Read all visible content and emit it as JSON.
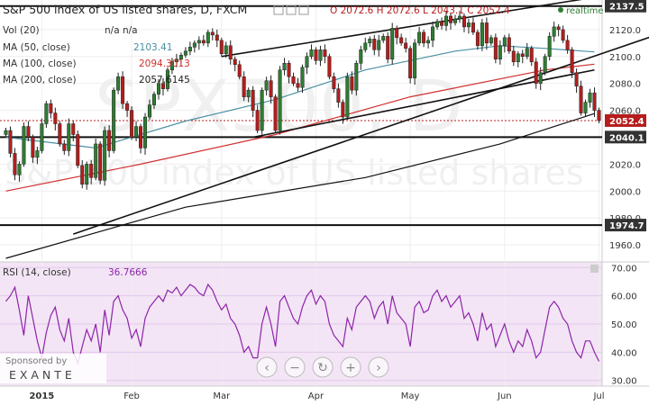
{
  "header": {
    "title": "S&P 500 index of US listed shares, D, FXCM",
    "ohlc": "O 2072.6 H 2072.6 L 2043.1 C 2052.4",
    "realtime_label": "realtime"
  },
  "indicators": [
    {
      "label": "Vol (20)",
      "values": "n/a  n/a"
    },
    {
      "label": "MA (50, close)",
      "value": "2103.41"
    },
    {
      "label": "MA (100, close)",
      "value": "2094.3013"
    },
    {
      "label": "MA (200, close)",
      "value": "2057.6145"
    }
  ],
  "watermark": {
    "symbol": "SPX500, D",
    "desc": "S&P 500 index of US listed shares"
  },
  "rsi_panel": {
    "label": "RSI (14, close)",
    "value": "36.7666"
  },
  "sponsor": {
    "label": "Sponsored by",
    "brand": "E X A N T E"
  },
  "controls": [
    "back-icon",
    "zoom-out-icon",
    "reset-icon",
    "zoom-in-icon",
    "forward-icon"
  ],
  "colors": {
    "up": "#2e7d32",
    "down": "#b71c1c",
    "ma50": "#4a90a4",
    "ma100": "#d32f2f",
    "ma200": "#111111",
    "rsi": "#8e24aa",
    "rsi_bg": "#f3e5f5",
    "price_axis_bg": "#333333"
  },
  "chart_data": {
    "type": "line",
    "title": "S&P 500 index of US listed shares, D, FXCM",
    "price_axis": {
      "ticks": [
        2120.0,
        2100.0,
        2080.0,
        2060.0,
        2040.0,
        2020.0,
        2000.0,
        1980.0,
        1960.0
      ],
      "ylim": [
        1948,
        2142
      ],
      "badges": [
        {
          "label": "2137.5",
          "value": 2137.5
        },
        {
          "label": "2052.4",
          "value": 2052.4
        },
        {
          "label": "2040.1",
          "value": 2040.1
        },
        {
          "label": "1974.7",
          "value": 1974.7
        }
      ],
      "horizontal_levels": [
        2137.5,
        2040.1,
        1974.7
      ]
    },
    "time_axis": {
      "labels": [
        "2015",
        "Feb",
        "Mar",
        "Apr",
        "May",
        "Jun",
        "Jul"
      ],
      "label_bar_index": [
        8,
        28,
        48,
        69,
        90,
        111,
        132
      ]
    },
    "candles_close": [
      2045,
      2028,
      2012,
      2020,
      2048,
      2040,
      2025,
      2030,
      2050,
      2065,
      2058,
      2050,
      2035,
      2030,
      2050,
      2042,
      2019,
      2005,
      2020,
      2010,
      2035,
      2008,
      2045,
      2030,
      2075,
      2085,
      2065,
      2060,
      2040,
      2048,
      2032,
      2055,
      2064,
      2072,
      2080,
      2076,
      2090,
      2096,
      2098,
      2101,
      2104,
      2107,
      2110,
      2112,
      2110,
      2118,
      2116,
      2112,
      2102,
      2108,
      2098,
      2094,
      2085,
      2070,
      2075,
      2060,
      2045,
      2075,
      2082,
      2070,
      2045,
      2090,
      2095,
      2085,
      2080,
      2077,
      2092,
      2100,
      2105,
      2097,
      2105,
      2100,
      2085,
      2076,
      2066,
      2055,
      2085,
      2075,
      2095,
      2105,
      2110,
      2113,
      2105,
      2112,
      2115,
      2098,
      2121,
      2114,
      2110,
      2106,
      2084,
      2110,
      2118,
      2110,
      2112,
      2122,
      2126,
      2123,
      2130,
      2125,
      2128,
      2130,
      2122,
      2125,
      2118,
      2108,
      2125,
      2110,
      2114,
      2098,
      2108,
      2114,
      2104,
      2096,
      2102,
      2100,
      2106,
      2096,
      2080,
      2088,
      2100,
      2115,
      2122,
      2120,
      2112,
      2105,
      2088,
      2078,
      2058,
      2066,
      2073,
      2060,
      2052.4
    ],
    "ma_series": [
      {
        "name": "MA (50, close)",
        "keypoints": [
          [
            0,
            2040
          ],
          [
            20,
            2032
          ],
          [
            40,
            2052
          ],
          [
            60,
            2068
          ],
          [
            80,
            2090
          ],
          [
            100,
            2104
          ],
          [
            110,
            2108
          ],
          [
            120,
            2106
          ],
          [
            131,
            2103.4
          ]
        ]
      },
      {
        "name": "MA (100, close)",
        "keypoints": [
          [
            0,
            2000
          ],
          [
            30,
            2020
          ],
          [
            60,
            2042
          ],
          [
            90,
            2070
          ],
          [
            120,
            2090
          ],
          [
            131,
            2094.3
          ]
        ]
      },
      {
        "name": "MA (200, close)",
        "keypoints": [
          [
            0,
            1950
          ],
          [
            40,
            1988
          ],
          [
            80,
            2010
          ],
          [
            110,
            2035
          ],
          [
            131,
            2057.6
          ]
        ]
      }
    ],
    "trendlines": [
      [
        [
          15,
          1968
        ],
        [
          150,
          2122
        ]
      ],
      [
        [
          48,
          2100
        ],
        [
          131,
          2144
        ]
      ],
      [
        [
          55,
          2040
        ],
        [
          131,
          2090
        ]
      ]
    ],
    "rsi": {
      "name": "RSI (14, close)",
      "ylim": [
        28,
        72
      ],
      "ticks": [
        70.0,
        60.0,
        50.0,
        40.0,
        30.0
      ],
      "values": [
        58,
        60,
        63,
        55,
        46,
        60,
        52,
        44,
        38,
        47,
        53,
        56,
        48,
        44,
        52,
        40,
        36,
        42,
        48,
        44,
        50,
        40,
        55,
        46,
        58,
        60,
        55,
        52,
        45,
        48,
        42,
        52,
        56,
        58,
        60,
        58,
        62,
        61,
        63,
        60,
        62,
        64,
        63,
        61,
        60,
        64,
        62,
        58,
        55,
        57,
        52,
        50,
        46,
        40,
        42,
        38,
        38,
        50,
        56,
        50,
        42,
        58,
        60,
        56,
        52,
        50,
        56,
        60,
        62,
        57,
        60,
        58,
        50,
        46,
        44,
        42,
        52,
        48,
        56,
        58,
        60,
        58,
        52,
        56,
        58,
        50,
        60,
        54,
        52,
        50,
        42,
        56,
        58,
        54,
        55,
        60,
        62,
        58,
        60,
        56,
        58,
        60,
        52,
        54,
        50,
        44,
        54,
        48,
        50,
        42,
        46,
        50,
        44,
        40,
        44,
        42,
        48,
        44,
        38,
        40,
        48,
        56,
        58,
        56,
        52,
        50,
        44,
        40,
        38,
        44,
        44,
        40,
        36.77
      ]
    }
  }
}
